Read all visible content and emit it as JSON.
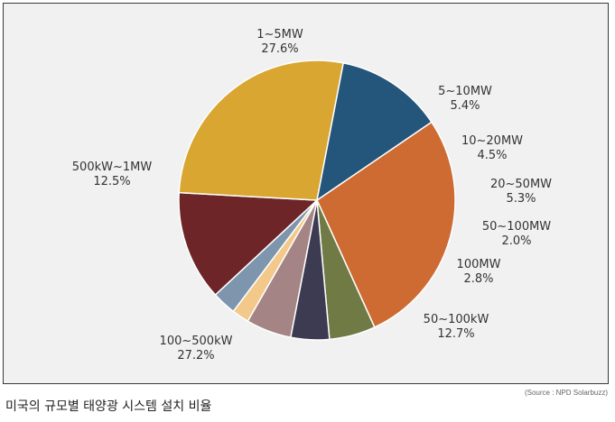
{
  "chart_data": {
    "type": "pie",
    "start_angle_deg": 56,
    "slices": [
      {
        "label": "1~5MW",
        "value": 27.6,
        "value_text": "27.6%",
        "color": "#cd6b33"
      },
      {
        "label": "5~10MW",
        "value": 5.4,
        "value_text": "5.4%",
        "color": "#6f7a45"
      },
      {
        "label": "10~20MW",
        "value": 4.5,
        "value_text": "4.5%",
        "color": "#3c3b52"
      },
      {
        "label": "20~50MW",
        "value": 5.3,
        "value_text": "5.3%",
        "color": "#a58485"
      },
      {
        "label": "50~100MW",
        "value": 2.0,
        "value_text": "2.0%",
        "color": "#f2c98a"
      },
      {
        "label": "100MW",
        "value": 2.8,
        "value_text": "2.8%",
        "color": "#7d96ad"
      },
      {
        "label": "50~100kW",
        "value": 12.7,
        "value_text": "12.7%",
        "color": "#6e2528"
      },
      {
        "label": "100~500kW",
        "value": 27.2,
        "value_text": "27.2%",
        "color": "#d8a631"
      },
      {
        "label": "500kW~1MW",
        "value": 12.5,
        "value_text": "12.5%",
        "color": "#24557a"
      }
    ]
  },
  "caption": "미국의 규모별 태양광 시스템 설치 비율",
  "source": "(Source : NPD Solarbuzz)"
}
